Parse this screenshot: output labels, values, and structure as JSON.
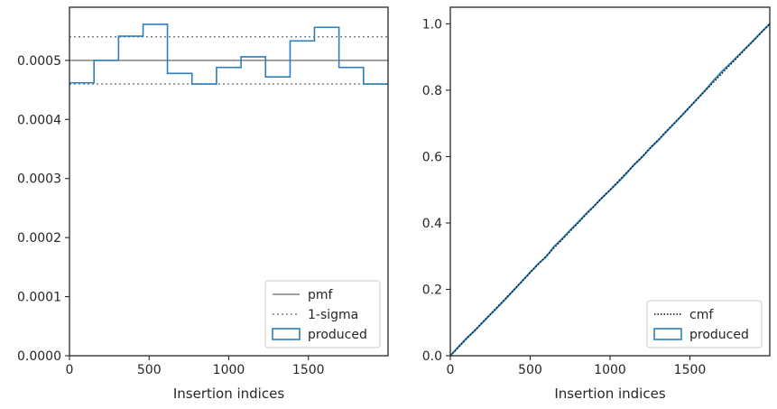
{
  "chart_data": [
    {
      "type": "step",
      "xlabel": "Insertion indices",
      "ylabel": "",
      "xlim": [
        0,
        2000
      ],
      "ylim": [
        0,
        0.00059
      ],
      "xticks": [
        0,
        500,
        1000,
        1500
      ],
      "xtick_labels": [
        "0",
        "500",
        "1000",
        "1500"
      ],
      "yticks": [
        0,
        0.0001,
        0.0002,
        0.0003,
        0.0004,
        0.0005
      ],
      "ytick_labels": [
        "0.0000",
        "0.0001",
        "0.0002",
        "0.0003",
        "0.0004",
        "0.0005"
      ],
      "legend_position": "lower right",
      "series": [
        {
          "name": "pmf",
          "kind": "hline",
          "style": "solid",
          "color": "#808080",
          "y": 0.0005
        },
        {
          "name": "1-sigma",
          "kind": "hline",
          "style": "dotted",
          "color": "#808080",
          "y": [
            0.00046,
            0.00054
          ]
        },
        {
          "name": "produced",
          "kind": "step-histogram",
          "color": "#2c7fb8",
          "bin_edges": [
            0,
            154,
            308,
            462,
            615,
            769,
            923,
            1077,
            1231,
            1385,
            1538,
            1692,
            1846,
            2000
          ],
          "values": [
            0.000462,
            0.0005,
            0.000541,
            0.000561,
            0.000478,
            0.00046,
            0.000488,
            0.000506,
            0.000472,
            0.000533,
            0.000556,
            0.000488,
            0.00046
          ]
        }
      ]
    },
    {
      "type": "line",
      "xlabel": "Insertion indices",
      "ylabel": "",
      "xlim": [
        0,
        2000
      ],
      "ylim": [
        0,
        1.05
      ],
      "xticks": [
        0,
        500,
        1000,
        1500
      ],
      "xtick_labels": [
        "0",
        "500",
        "1000",
        "1500"
      ],
      "yticks": [
        0,
        0.2,
        0.4,
        0.6,
        0.8,
        1.0
      ],
      "ytick_labels": [
        "0.0",
        "0.2",
        "0.4",
        "0.6",
        "0.8",
        "1.0"
      ],
      "legend_position": "lower right",
      "series": [
        {
          "name": "cmf",
          "style": "dotted",
          "color": "#000000",
          "x": [
            0,
            2000
          ],
          "y": [
            0,
            1.0
          ]
        },
        {
          "name": "produced",
          "style": "solid",
          "color": "#2c7fb8",
          "x": [
            0,
            50,
            100,
            150,
            200,
            250,
            300,
            350,
            400,
            450,
            500,
            550,
            600,
            650,
            700,
            750,
            800,
            850,
            900,
            950,
            1000,
            1050,
            1100,
            1150,
            1200,
            1250,
            1300,
            1350,
            1400,
            1450,
            1500,
            1550,
            1600,
            1650,
            1700,
            1750,
            1800,
            1850,
            1900,
            1950,
            2000
          ],
          "y": [
            0,
            0.026,
            0.052,
            0.074,
            0.099,
            0.124,
            0.148,
            0.173,
            0.199,
            0.225,
            0.251,
            0.277,
            0.298,
            0.329,
            0.352,
            0.378,
            0.402,
            0.428,
            0.451,
            0.476,
            0.499,
            0.523,
            0.548,
            0.575,
            0.598,
            0.625,
            0.648,
            0.674,
            0.699,
            0.724,
            0.75,
            0.776,
            0.802,
            0.83,
            0.856,
            0.879,
            0.903,
            0.927,
            0.951,
            0.976,
            1.0
          ]
        }
      ]
    }
  ]
}
